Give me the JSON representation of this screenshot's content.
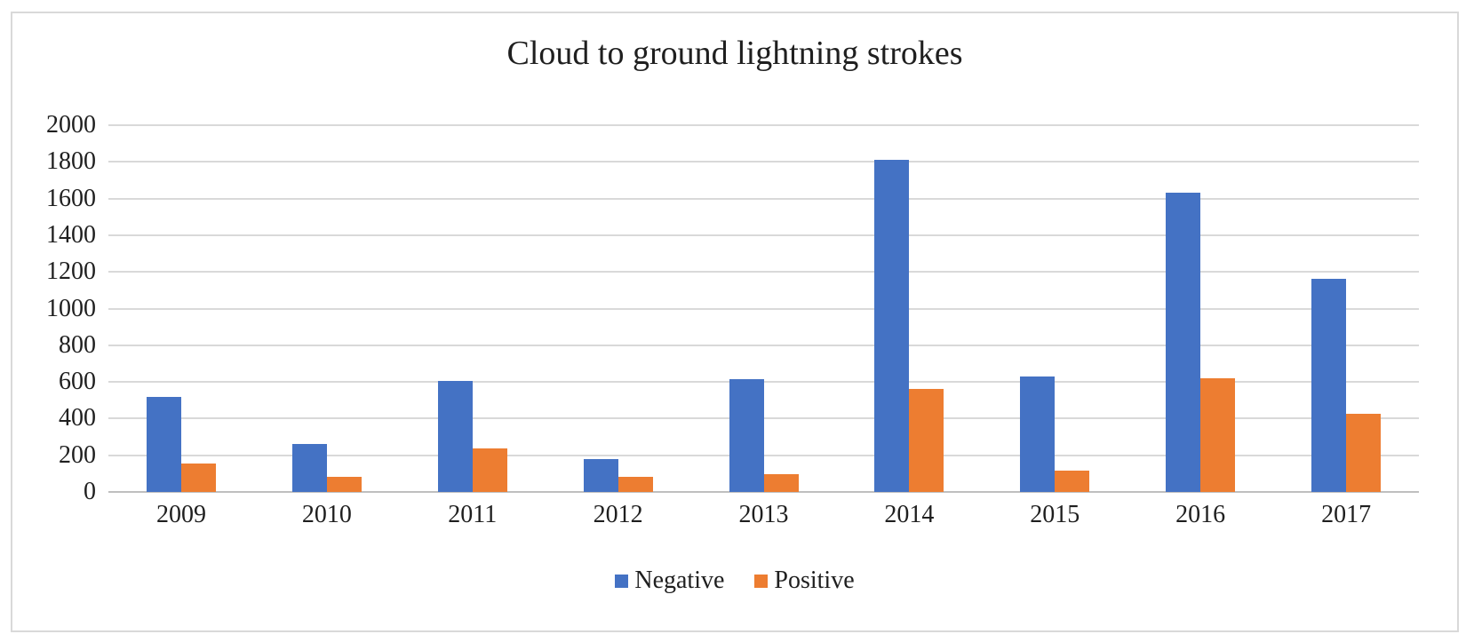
{
  "chart_data": {
    "type": "bar",
    "title": "Cloud to ground lightning strokes",
    "categories": [
      "2009",
      "2010",
      "2011",
      "2012",
      "2013",
      "2014",
      "2015",
      "2016",
      "2017"
    ],
    "series": [
      {
        "name": "Negative",
        "color": "#4472C4",
        "values": [
          520,
          260,
          605,
          180,
          615,
          1810,
          630,
          1630,
          1160
        ]
      },
      {
        "name": "Positive",
        "color": "#ED7D31",
        "values": [
          155,
          80,
          235,
          80,
          95,
          560,
          115,
          620,
          425
        ]
      }
    ],
    "xlabel": "",
    "ylabel": "",
    "ylim": [
      0,
      2000
    ],
    "ytick_step": 200,
    "ytick_labels": [
      "0",
      "200",
      "400",
      "600",
      "800",
      "1000",
      "1200",
      "1400",
      "1600",
      "1800",
      "2000"
    ],
    "grid": true,
    "legend_position": "bottom-center"
  },
  "colors": {
    "background": "#FFFFFF",
    "chart_border": "#D9D9D9",
    "gridline": "#D9D9D9",
    "axis_line": "#BFBFBF",
    "text": "#1F1F1F",
    "negative_bar": "#4472C4",
    "positive_bar": "#ED7D31"
  }
}
